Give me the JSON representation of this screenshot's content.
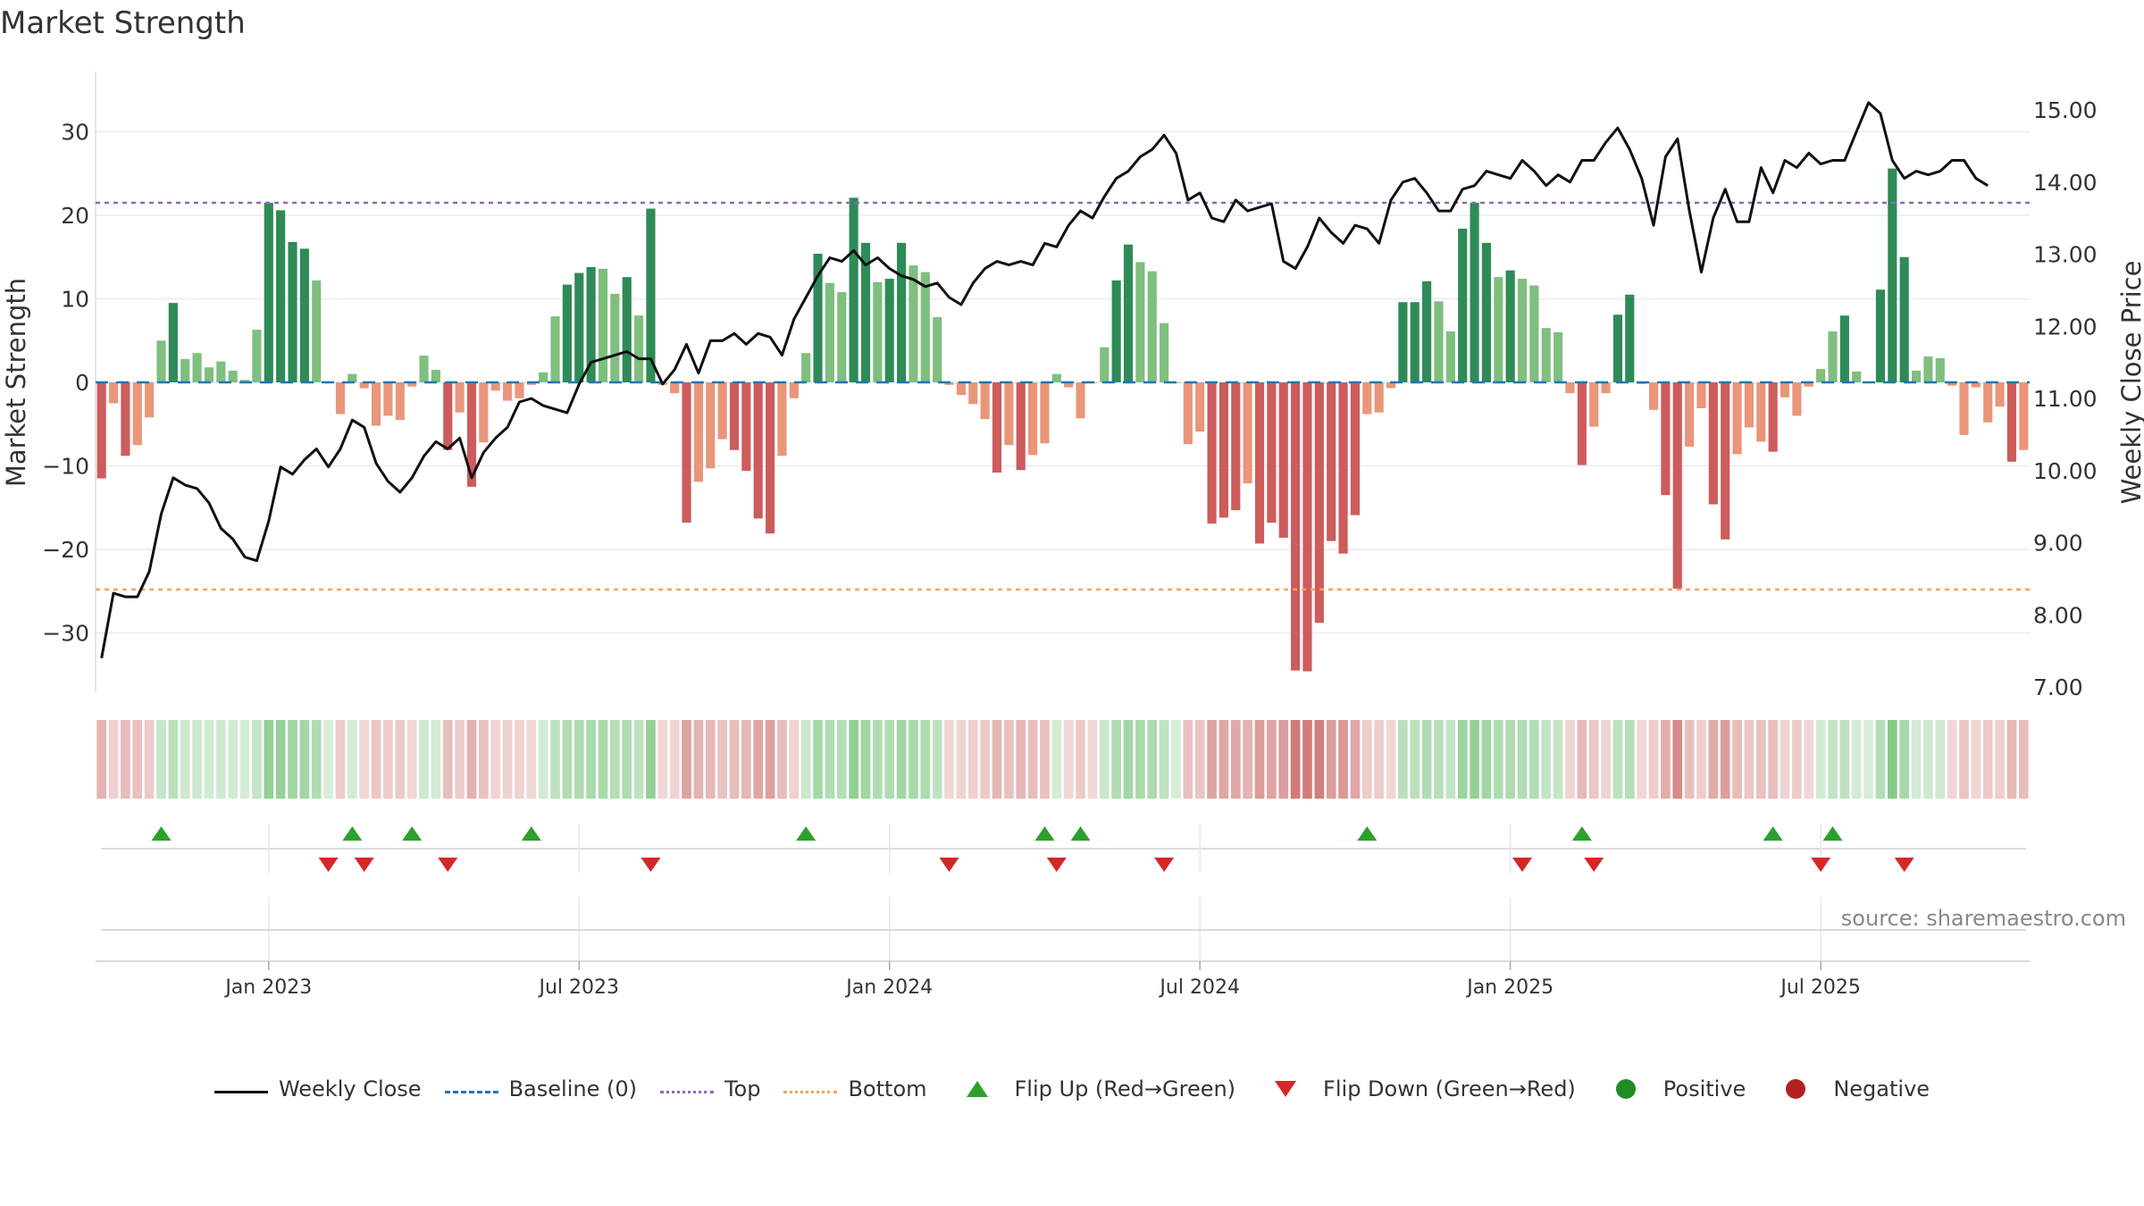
{
  "chart_data": {
    "type": "bar",
    "title": "Market Strength",
    "ylabel_left": "Market Strength",
    "ylabel_right": "Weekly Close Price",
    "source": "source: sharemaestro.com",
    "ylim_left": [
      -37,
      37
    ],
    "ylim_right": [
      6.8,
      15.6
    ],
    "left_ticks": [
      30,
      20,
      10,
      0,
      -10,
      -20,
      -30
    ],
    "left_tick_labels": [
      "30",
      "20",
      "10",
      "0",
      "−10",
      "−20",
      "−30"
    ],
    "right_ticks": [
      15,
      14,
      13,
      12,
      11,
      10,
      9,
      8,
      7
    ],
    "right_tick_labels": [
      "15.00",
      "14.00",
      "13.00",
      "12.00",
      "11.00",
      "10.00",
      "9.00",
      "8.00",
      "7.00"
    ],
    "x_tick_labels": [
      "Jan 2023",
      "Jul 2023",
      "Jan 2024",
      "Jul 2024",
      "Jan 2025",
      "Jul 2025"
    ],
    "x_tick_weeks": [
      14.5,
      40.5,
      66.5,
      92.5,
      118.5,
      144.5
    ],
    "top_line": 21.5,
    "bottom_line": -24.8,
    "strength": [
      -11.5,
      -2.5,
      -8.8,
      -7.5,
      -4.2,
      5,
      9.5,
      2.8,
      3.5,
      1.8,
      2.5,
      1.4,
      0.3,
      6.3,
      21.5,
      20.6,
      16.8,
      16,
      12.2,
      0,
      -3.8,
      1,
      -0.7,
      -5.2,
      -4,
      -4.5,
      -0.5,
      3.2,
      1.5,
      -8.1,
      -3.6,
      -12.5,
      -7.2,
      -1,
      -2.2,
      -1.9,
      -0.3,
      1.2,
      7.9,
      11.7,
      13.1,
      13.8,
      13.6,
      10.6,
      12.6,
      8,
      20.8,
      -0.3,
      -1.3,
      -16.8,
      -11.9,
      -10.3,
      -6.8,
      -8.1,
      -10.6,
      -16.3,
      -18.1,
      -8.8,
      -1.9,
      3.5,
      15.4,
      11.9,
      10.8,
      22.1,
      16.7,
      12,
      12.4,
      16.7,
      14,
      13.2,
      7.8,
      -0.3,
      -1.5,
      -2.6,
      -4.4,
      -10.8,
      -7.5,
      -10.5,
      -8.7,
      -7.3,
      1,
      -0.6,
      -4.3,
      -0.1,
      4.2,
      12.2,
      16.5,
      14.4,
      13.3,
      7.1,
      0,
      -7.4,
      -5.9,
      -16.9,
      -16.2,
      -15.3,
      -12.1,
      -19.3,
      -16.8,
      -18.6,
      -34.5,
      -34.6,
      -28.8,
      -19,
      -20.5,
      -15.9,
      -3.8,
      -3.6,
      -0.7,
      9.6,
      9.6,
      12.1,
      9.7,
      6.1,
      18.4,
      21.5,
      16.7,
      12.6,
      13.4,
      12.4,
      11.6,
      6.5,
      6,
      -1.3,
      -9.9,
      -5.3,
      -1.3,
      8.1,
      10.5,
      -0.2,
      -3.3,
      -13.5,
      -24.7,
      -7.7,
      -3.1,
      -14.6,
      -18.8,
      -8.6,
      -5.4,
      -7.1,
      -8.3,
      -1.8,
      -4,
      -0.5,
      1.6,
      6.1,
      8,
      1.3,
      0,
      11.1,
      25.6,
      15,
      1.4,
      3.1,
      2.9,
      -0.4,
      -6.3,
      -0.6,
      -4.8,
      -2.9,
      -9.5,
      -8.1
    ],
    "close_price": [
      7.4,
      8.3,
      8.25,
      8.25,
      8.6,
      9.4,
      9.9,
      9.8,
      9.75,
      9.55,
      9.2,
      9.05,
      8.8,
      8.75,
      9.3,
      10.05,
      9.95,
      10.15,
      10.3,
      10.05,
      10.3,
      10.7,
      10.6,
      10.1,
      9.85,
      9.7,
      9.9,
      10.2,
      10.4,
      10.3,
      10.45,
      9.9,
      10.25,
      10.45,
      10.6,
      10.95,
      11,
      10.9,
      10.85,
      10.8,
      11.2,
      11.5,
      11.55,
      11.6,
      11.65,
      11.55,
      11.55,
      11.2,
      11.4,
      11.75,
      11.35,
      11.8,
      11.8,
      11.9,
      11.75,
      11.9,
      11.85,
      11.6,
      12.1,
      12.4,
      12.7,
      12.95,
      12.9,
      13.05,
      12.85,
      12.95,
      12.8,
      12.7,
      12.65,
      12.55,
      12.6,
      12.4,
      12.3,
      12.6,
      12.8,
      12.9,
      12.85,
      12.9,
      12.85,
      13.15,
      13.1,
      13.4,
      13.6,
      13.5,
      13.8,
      14.05,
      14.15,
      14.35,
      14.45,
      14.65,
      14.4,
      13.75,
      13.85,
      13.5,
      13.45,
      13.75,
      13.6,
      13.65,
      13.7,
      12.9,
      12.8,
      13.1,
      13.5,
      13.3,
      13.15,
      13.4,
      13.35,
      13.15,
      13.75,
      14,
      14.05,
      13.85,
      13.6,
      13.6,
      13.9,
      13.95,
      14.15,
      14.1,
      14.05,
      14.3,
      14.15,
      13.95,
      14.1,
      14,
      14.3,
      14.3,
      14.55,
      14.75,
      14.45,
      14.05,
      13.4,
      14.35,
      14.6,
      13.6,
      12.75,
      13.5,
      13.9,
      13.45,
      13.45,
      14.2,
      13.85,
      14.3,
      14.2,
      14.4,
      14.25,
      14.3,
      14.3,
      14.7,
      15.1,
      14.95,
      14.3,
      14.05,
      14.15,
      14.1,
      14.15,
      14.3,
      14.3,
      14.05,
      13.95
    ],
    "flip_up_weeks": [
      5,
      21,
      26,
      36,
      59,
      79,
      82,
      106,
      124,
      140,
      145
    ],
    "flip_down_weeks": [
      19,
      22,
      29,
      46,
      71,
      80,
      89,
      119,
      125,
      144,
      151
    ],
    "colors": {
      "pos_strong": "#2e8b57",
      "pos_weak": "#7fbf7f",
      "neg_strong": "#cd5c5c",
      "neg_weak": "#e9967a",
      "close_line": "#111111",
      "baseline": "#1f77b4",
      "top_line": "#9467bd",
      "bottom_line": "#f4a261",
      "flip_up": "#2ca02c",
      "flip_down": "#d62728"
    }
  },
  "legend": {
    "weekly_close": "Weekly Close",
    "baseline": "Baseline (0)",
    "top": "Top",
    "bottom": "Bottom",
    "flip_up": "Flip Up (Red→Green)",
    "flip_down": "Flip Down (Green→Red)",
    "positive": "Positive",
    "negative": "Negative",
    "positive_color": "#228b22",
    "negative_color": "#b22222"
  }
}
